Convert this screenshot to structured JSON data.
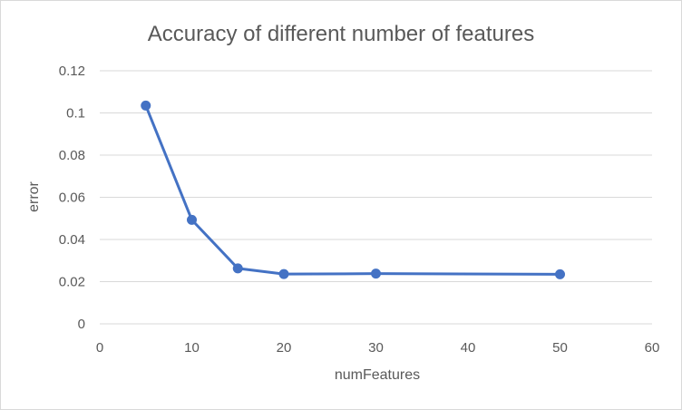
{
  "chart_data": {
    "type": "line",
    "title": "Accuracy of different number of features",
    "xlabel": "numFeatures",
    "ylabel": "error",
    "xlim": [
      0,
      60
    ],
    "ylim": [
      0,
      0.12
    ],
    "x_ticks": [
      0,
      10,
      20,
      30,
      40,
      50,
      60
    ],
    "y_ticks": [
      0,
      0.02,
      0.04,
      0.06,
      0.08,
      0.1,
      0.12
    ],
    "x_tick_labels": [
      "0",
      "10",
      "20",
      "30",
      "40",
      "50",
      "60"
    ],
    "y_tick_labels": [
      "0",
      "0.02",
      "0.04",
      "0.06",
      "0.08",
      "0.1",
      "0.12"
    ],
    "grid": true,
    "legend": "none",
    "series": [
      {
        "color": "#4472c4",
        "points": [
          {
            "x": 5,
            "y": 0.1035
          },
          {
            "x": 10,
            "y": 0.0493
          },
          {
            "x": 15,
            "y": 0.0263
          },
          {
            "x": 20,
            "y": 0.0236
          },
          {
            "x": 30,
            "y": 0.0238
          },
          {
            "x": 50,
            "y": 0.0235
          }
        ]
      }
    ]
  }
}
